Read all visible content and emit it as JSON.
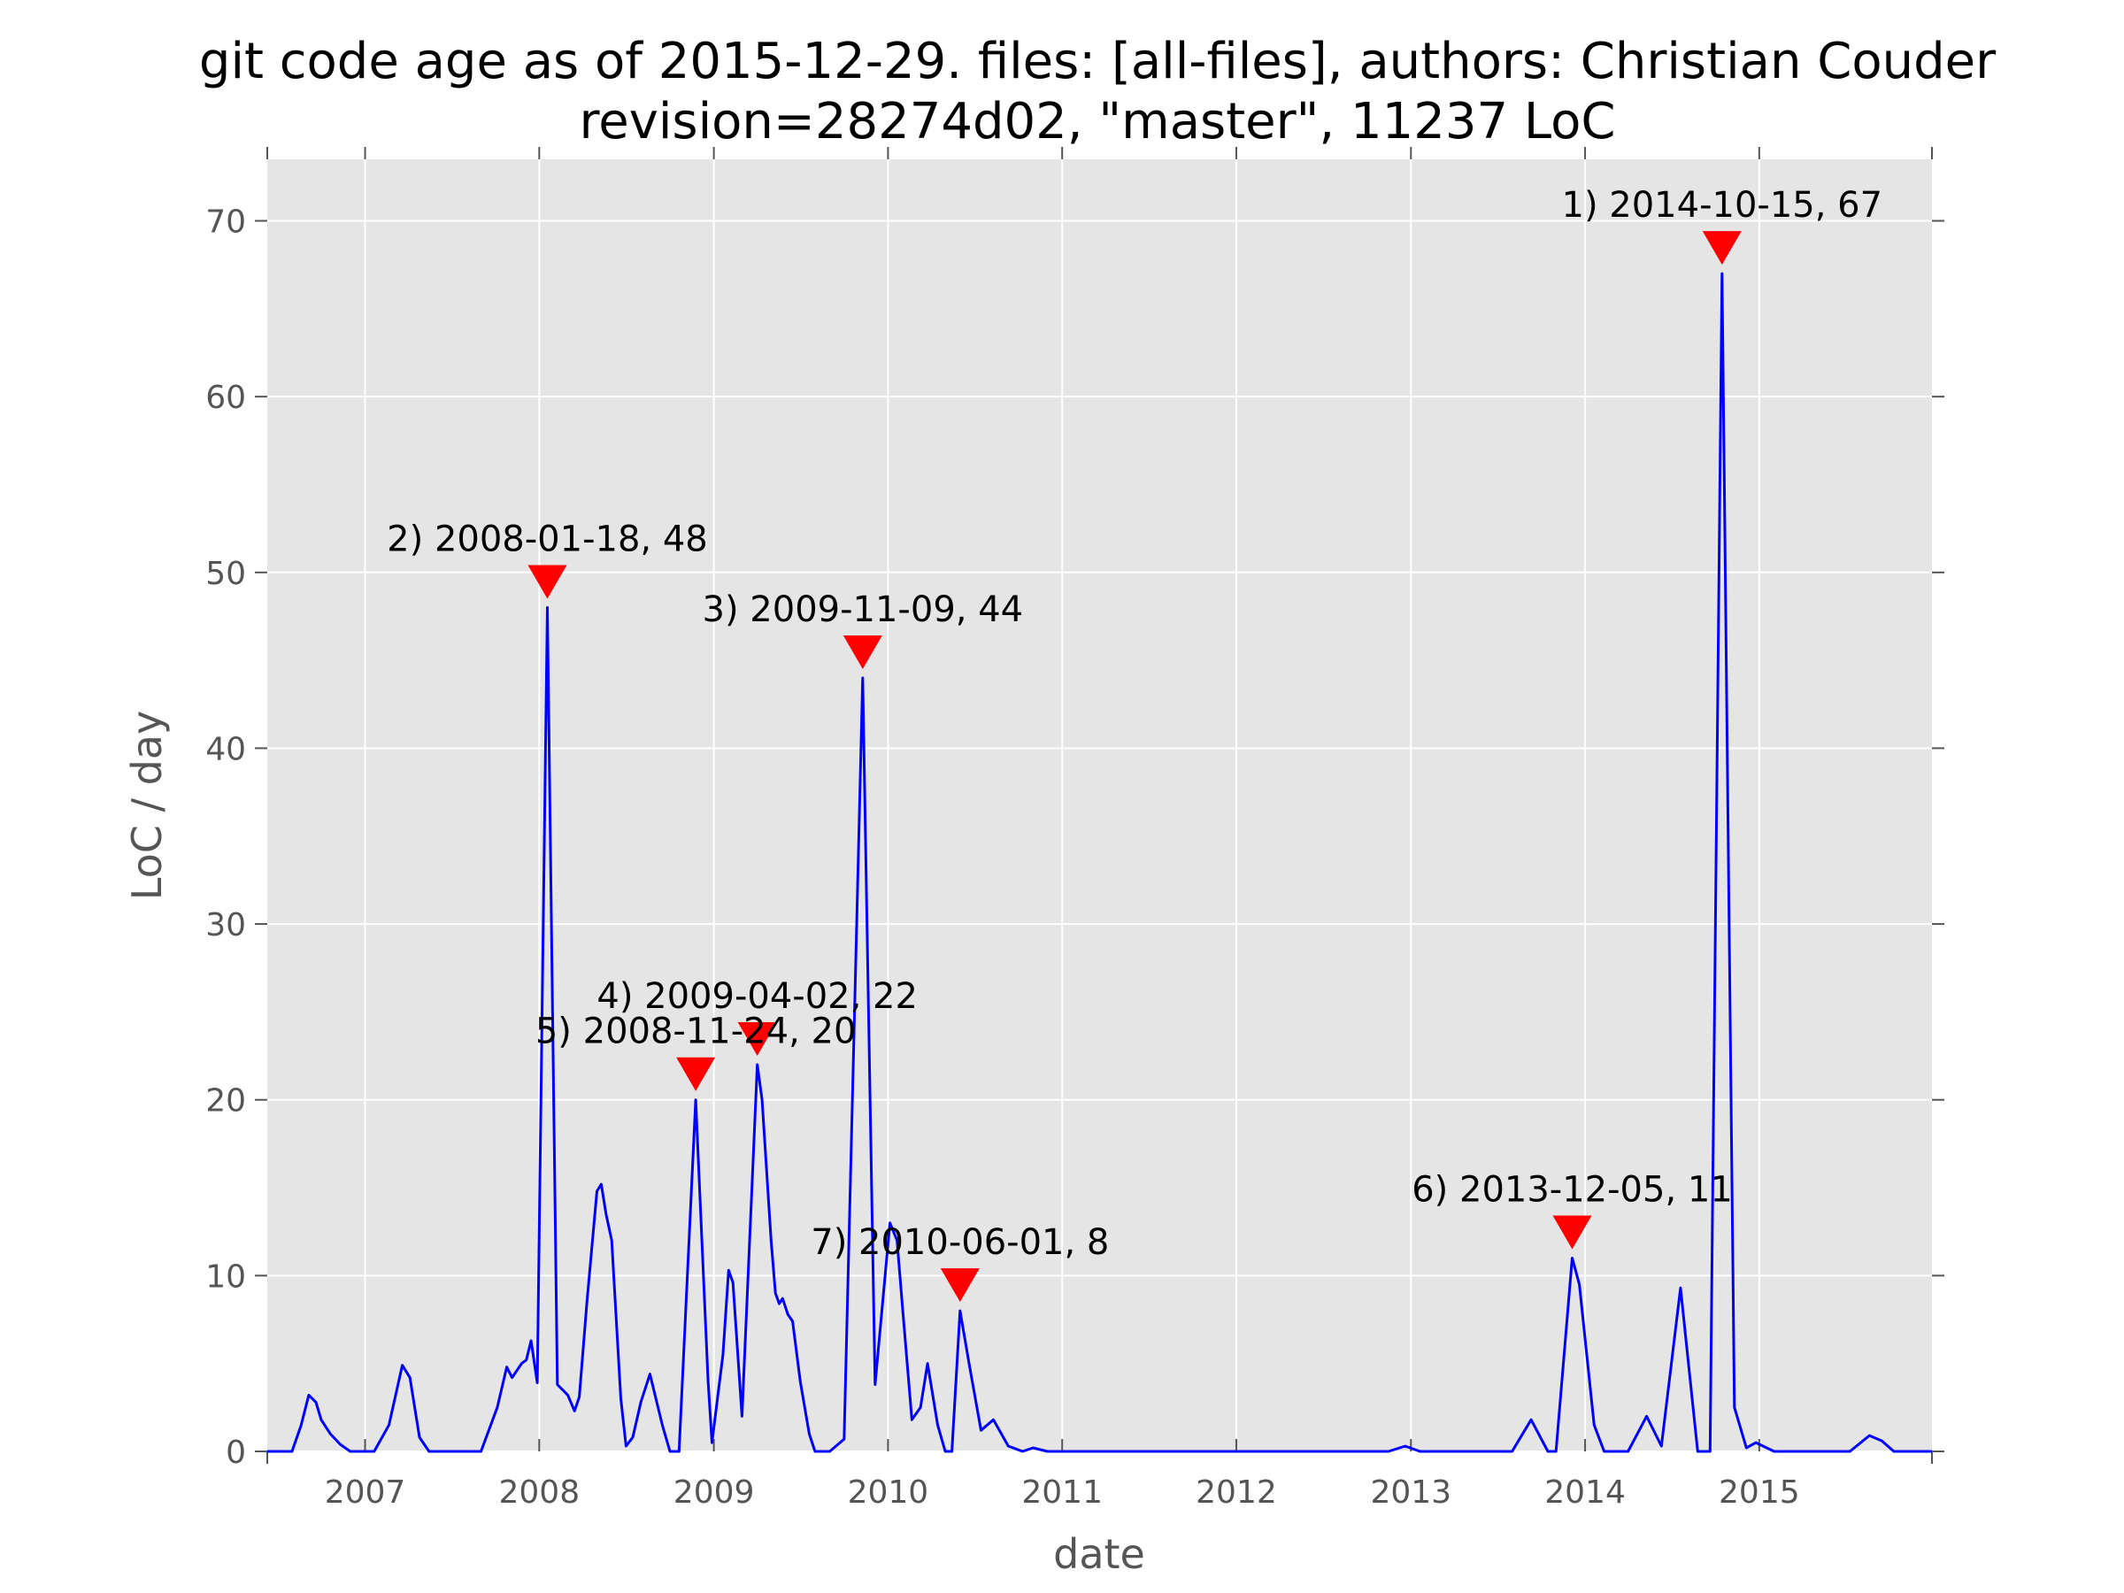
{
  "chart_data": {
    "type": "line",
    "title_lines": [
      "git code age as of 2015-12-29. files: [all-files], authors: Christian Couder",
      "revision=28274d02, \"master\", 11237 LoC"
    ],
    "xlabel": "date",
    "ylabel": "LoC / day",
    "x_tick_labels": [
      "2007",
      "2008",
      "2009",
      "2010",
      "2011",
      "2012",
      "2013",
      "2014",
      "2015"
    ],
    "y_ticks": [
      0,
      10,
      20,
      30,
      40,
      50,
      60,
      70
    ],
    "xlim": [
      "2006-06-10",
      "2015-12-29"
    ],
    "ylim": [
      0,
      73.5
    ],
    "grid": true,
    "colors": {
      "line": "#0000ff",
      "marker": "#ff0000",
      "plot_bg": "#e5e5e5",
      "grid": "#ffffff"
    },
    "series": [
      {
        "points": [
          [
            "2006-06-10",
            0
          ],
          [
            "2006-08-01",
            0
          ],
          [
            "2006-08-20",
            1.5
          ],
          [
            "2006-09-05",
            3.2
          ],
          [
            "2006-09-20",
            2.8
          ],
          [
            "2006-10-01",
            1.8
          ],
          [
            "2006-10-20",
            1.0
          ],
          [
            "2006-11-10",
            0.4
          ],
          [
            "2006-12-01",
            0
          ],
          [
            "2007-01-20",
            0
          ],
          [
            "2007-02-20",
            1.5
          ],
          [
            "2007-03-20",
            4.9
          ],
          [
            "2007-04-05",
            4.2
          ],
          [
            "2007-04-25",
            0.8
          ],
          [
            "2007-05-15",
            0
          ],
          [
            "2007-09-01",
            0
          ],
          [
            "2007-10-05",
            2.5
          ],
          [
            "2007-10-25",
            4.8
          ],
          [
            "2007-11-05",
            4.2
          ],
          [
            "2007-11-25",
            5.0
          ],
          [
            "2007-12-05",
            5.2
          ],
          [
            "2007-12-15",
            6.3
          ],
          [
            "2007-12-28",
            3.9
          ],
          [
            "2008-01-18",
            48
          ],
          [
            "2008-02-08",
            3.8
          ],
          [
            "2008-03-01",
            3.2
          ],
          [
            "2008-03-15",
            2.3
          ],
          [
            "2008-03-25",
            3.1
          ],
          [
            "2008-04-10",
            8.5
          ],
          [
            "2008-05-01",
            14.8
          ],
          [
            "2008-05-10",
            15.2
          ],
          [
            "2008-05-20",
            13.5
          ],
          [
            "2008-06-01",
            12.0
          ],
          [
            "2008-06-20",
            3.0
          ],
          [
            "2008-07-01",
            0.3
          ],
          [
            "2008-07-15",
            0.8
          ],
          [
            "2008-08-01",
            2.8
          ],
          [
            "2008-08-20",
            4.4
          ],
          [
            "2008-09-15",
            1.5
          ],
          [
            "2008-10-01",
            0
          ],
          [
            "2008-10-20",
            0
          ],
          [
            "2008-11-24",
            20
          ],
          [
            "2008-12-20",
            4.0
          ],
          [
            "2008-12-28",
            0.5
          ],
          [
            "2009-01-20",
            5.5
          ],
          [
            "2009-02-01",
            10.3
          ],
          [
            "2009-02-10",
            9.6
          ],
          [
            "2009-03-01",
            2.0
          ],
          [
            "2009-04-02",
            22
          ],
          [
            "2009-04-12",
            20.0
          ],
          [
            "2009-05-01",
            12.0
          ],
          [
            "2009-05-10",
            9.0
          ],
          [
            "2009-05-18",
            8.4
          ],
          [
            "2009-05-25",
            8.7
          ],
          [
            "2009-06-05",
            7.8
          ],
          [
            "2009-06-15",
            7.4
          ],
          [
            "2009-07-01",
            4.0
          ],
          [
            "2009-07-20",
            1.0
          ],
          [
            "2009-08-01",
            0
          ],
          [
            "2009-09-01",
            0
          ],
          [
            "2009-10-01",
            0.7
          ],
          [
            "2009-11-09",
            44
          ],
          [
            "2009-12-05",
            3.8
          ],
          [
            "2010-01-05",
            13.0
          ],
          [
            "2010-01-20",
            12.0
          ],
          [
            "2010-02-01",
            8.0
          ],
          [
            "2010-02-20",
            1.8
          ],
          [
            "2010-03-10",
            2.5
          ],
          [
            "2010-03-25",
            5.0
          ],
          [
            "2010-04-15",
            1.5
          ],
          [
            "2010-05-01",
            0
          ],
          [
            "2010-05-15",
            0
          ],
          [
            "2010-06-01",
            8
          ],
          [
            "2010-06-20",
            5.0
          ],
          [
            "2010-07-15",
            1.2
          ],
          [
            "2010-08-10",
            1.8
          ],
          [
            "2010-09-10",
            0.3
          ],
          [
            "2010-10-10",
            0
          ],
          [
            "2010-11-01",
            0.2
          ],
          [
            "2010-12-01",
            0
          ],
          [
            "2012-11-15",
            0
          ],
          [
            "2012-12-20",
            0.3
          ],
          [
            "2013-01-20",
            0
          ],
          [
            "2013-08-01",
            0
          ],
          [
            "2013-09-10",
            1.8
          ],
          [
            "2013-10-15",
            0
          ],
          [
            "2013-11-01",
            0
          ],
          [
            "2013-12-05",
            11
          ],
          [
            "2013-12-20",
            9.5
          ],
          [
            "2014-01-20",
            1.5
          ],
          [
            "2014-02-10",
            0
          ],
          [
            "2014-04-01",
            0
          ],
          [
            "2014-05-10",
            2.0
          ],
          [
            "2014-06-10",
            0.3
          ],
          [
            "2014-07-20",
            9.3
          ],
          [
            "2014-08-25",
            0
          ],
          [
            "2014-09-20",
            0
          ],
          [
            "2014-10-15",
            67
          ],
          [
            "2014-11-10",
            2.5
          ],
          [
            "2014-12-05",
            0.2
          ],
          [
            "2014-12-25",
            0.5
          ],
          [
            "2015-02-01",
            0
          ],
          [
            "2015-07-10",
            0
          ],
          [
            "2015-08-20",
            0.9
          ],
          [
            "2015-09-15",
            0.6
          ],
          [
            "2015-10-10",
            0
          ],
          [
            "2015-12-29",
            0
          ]
        ]
      }
    ],
    "annotations": [
      {
        "label": "1) 2014-10-15, 67",
        "date": "2014-10-15",
        "value": 67
      },
      {
        "label": "2) 2008-01-18, 48",
        "date": "2008-01-18",
        "value": 48
      },
      {
        "label": "3) 2009-11-09, 44",
        "date": "2009-11-09",
        "value": 44
      },
      {
        "label": "4) 2009-04-02, 22",
        "date": "2009-04-02",
        "value": 22
      },
      {
        "label": "5) 2008-11-24, 20",
        "date": "2008-11-24",
        "value": 20
      },
      {
        "label": "6) 2013-12-05, 11",
        "date": "2013-12-05",
        "value": 11
      },
      {
        "label": "7) 2010-06-01, 8",
        "date": "2010-06-01",
        "value": 8
      }
    ]
  }
}
